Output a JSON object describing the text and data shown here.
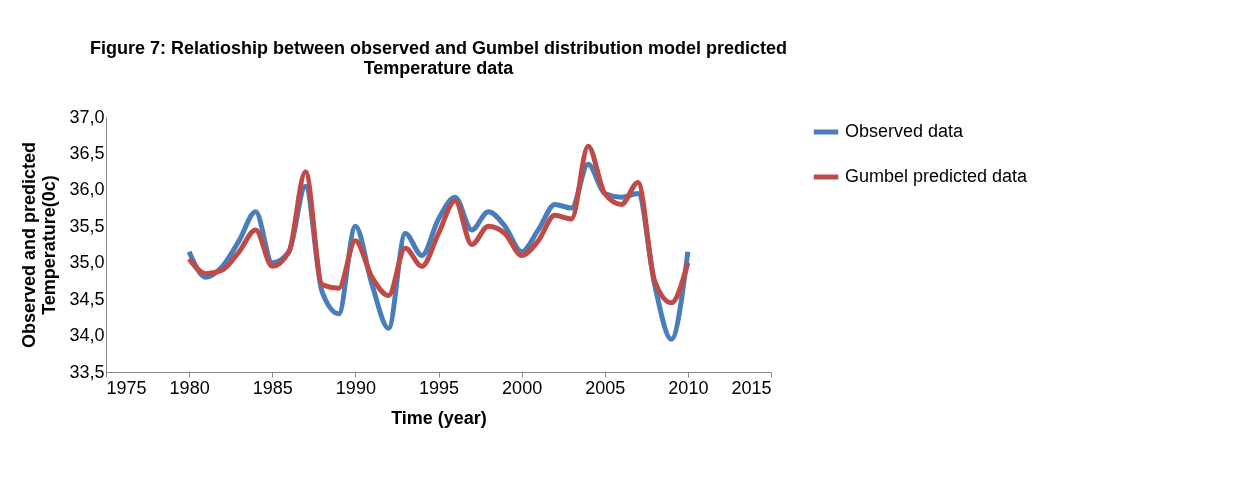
{
  "chart_data": {
    "type": "line",
    "title": "Figure 7: Relatioship between observed and Gumbel distribution model  predicted Temperature data",
    "xlabel": "Time (year)",
    "ylabel": "Observed and predicted Temperature(0c)",
    "x": [
      1980,
      1981,
      1982,
      1983,
      1984,
      1985,
      1986,
      1987,
      1988,
      1989,
      1990,
      1991,
      1992,
      1993,
      1994,
      1995,
      1996,
      1997,
      1998,
      1999,
      2000,
      2001,
      2002,
      2003,
      2004,
      2005,
      2006,
      2007,
      2008,
      2009,
      2010
    ],
    "series": [
      {
        "name": "Observed data",
        "color": "#4a7ebb",
        "values": [
          35.15,
          34.8,
          34.95,
          35.3,
          35.7,
          35.0,
          35.15,
          36.05,
          34.6,
          34.3,
          35.5,
          34.7,
          34.1,
          35.4,
          35.1,
          35.6,
          35.9,
          35.45,
          35.7,
          35.5,
          35.15,
          35.45,
          35.8,
          35.75,
          36.35,
          35.95,
          35.9,
          35.95,
          34.7,
          33.95,
          35.15
        ]
      },
      {
        "name": "Gumbel predicted data",
        "color": "#be4b48",
        "values": [
          35.05,
          34.85,
          34.9,
          35.15,
          35.45,
          34.95,
          35.15,
          36.25,
          34.7,
          34.65,
          35.3,
          34.8,
          34.55,
          35.2,
          34.95,
          35.4,
          35.85,
          35.25,
          35.5,
          35.4,
          35.1,
          35.3,
          35.65,
          35.6,
          36.6,
          35.95,
          35.8,
          36.1,
          34.75,
          34.45,
          35.0
        ]
      }
    ],
    "xlim": [
      1975,
      2015
    ],
    "xticks": [
      1975,
      1980,
      1985,
      1990,
      1995,
      2000,
      2005,
      2010,
      2015
    ],
    "ylim": [
      33.5,
      37.0
    ],
    "yticks": [
      {
        "value": 33.5,
        "label": "33,5"
      },
      {
        "value": 34.0,
        "label": "34,0"
      },
      {
        "value": 34.5,
        "label": "34,5"
      },
      {
        "value": 35.0,
        "label": "35,0"
      },
      {
        "value": 35.5,
        "label": "35,5"
      },
      {
        "value": 36.0,
        "label": "36,0"
      },
      {
        "value": 36.5,
        "label": "36,5"
      },
      {
        "value": 37.0,
        "label": "37,0"
      }
    ],
    "grid": false,
    "legend": "right",
    "marker": "none",
    "line_style": "solid"
  }
}
